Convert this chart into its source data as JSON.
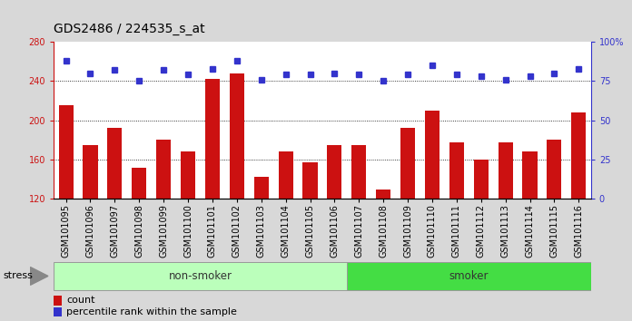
{
  "title": "GDS2486 / 224535_s_at",
  "samples": [
    "GSM101095",
    "GSM101096",
    "GSM101097",
    "GSM101098",
    "GSM101099",
    "GSM101100",
    "GSM101101",
    "GSM101102",
    "GSM101103",
    "GSM101104",
    "GSM101105",
    "GSM101106",
    "GSM101107",
    "GSM101108",
    "GSM101109",
    "GSM101110",
    "GSM101111",
    "GSM101112",
    "GSM101113",
    "GSM101114",
    "GSM101115",
    "GSM101116"
  ],
  "bar_values": [
    215,
    175,
    192,
    152,
    180,
    168,
    242,
    248,
    143,
    168,
    157,
    175,
    175,
    130,
    192,
    210,
    178,
    160,
    178,
    168,
    180,
    208
  ],
  "dot_values": [
    88,
    80,
    82,
    75,
    82,
    79,
    83,
    88,
    76,
    79,
    79,
    80,
    79,
    75,
    79,
    85,
    79,
    78,
    76,
    78,
    80,
    83
  ],
  "bar_color": "#cc1111",
  "dot_color": "#3333cc",
  "ylim_left": [
    120,
    280
  ],
  "ylim_right": [
    0,
    100
  ],
  "yticks_left": [
    120,
    160,
    200,
    240,
    280
  ],
  "yticks_right": [
    0,
    25,
    50,
    75,
    100
  ],
  "group_labels": [
    "non-smoker",
    "smoker"
  ],
  "group_counts": [
    12,
    10
  ],
  "group_colors": [
    "#bbffbb",
    "#44dd44"
  ],
  "stress_label": "stress",
  "legend_bar_label": "count",
  "legend_dot_label": "percentile rank within the sample",
  "bg_color": "#d8d8d8",
  "plot_bg": "#ffffff",
  "title_fontsize": 10,
  "tick_fontsize": 7,
  "label_fontsize": 8
}
